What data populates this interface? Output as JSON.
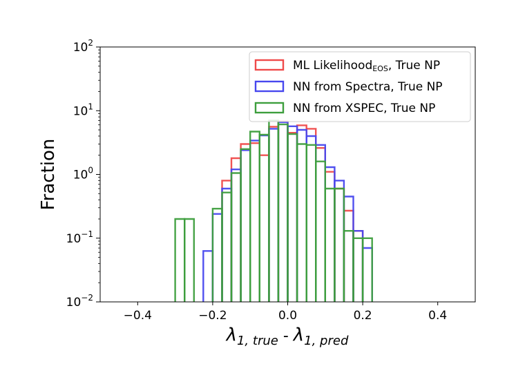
{
  "chart_data": {
    "type": "histogram",
    "title": "",
    "xlabel": {
      "parts": [
        {
          "text": "λ",
          "style": "italic"
        },
        {
          "text": "1, true",
          "style": "italic-sub"
        },
        {
          "text": " - ",
          "style": "normal"
        },
        {
          "text": "λ",
          "style": "italic"
        },
        {
          "text": "1, pred",
          "style": "italic-sub"
        }
      ]
    },
    "ylabel": "Fraction",
    "xlim": [
      -0.5,
      0.5
    ],
    "ylim_log10": [
      -2,
      2
    ],
    "yscale": "log",
    "x_ticks": [
      {
        "value": -0.4,
        "label": "−0.4"
      },
      {
        "value": -0.2,
        "label": "−0.2"
      },
      {
        "value": 0.0,
        "label": "0.0"
      },
      {
        "value": 0.2,
        "label": "0.2"
      },
      {
        "value": 0.4,
        "label": "0.4"
      }
    ],
    "y_ticks": [
      {
        "exp": -2,
        "base": "10",
        "sup": "−2"
      },
      {
        "exp": -1,
        "base": "10",
        "sup": "−1"
      },
      {
        "exp": 0,
        "base": "10",
        "sup": "0"
      },
      {
        "exp": 1,
        "base": "10",
        "sup": "1"
      },
      {
        "exp": 2,
        "base": "10",
        "sup": "2"
      }
    ],
    "bin_width": 0.025,
    "legend_position": "top-right",
    "series": [
      {
        "name": "ML Likelihood_EOS, True NP",
        "legend": {
          "main": "ML Likelihood",
          "sub": "EOS",
          "rest": ", True NP"
        },
        "color": "#ef4a4a",
        "bins": [
          [
            -0.175,
            0.8
          ],
          [
            -0.15,
            1.8
          ],
          [
            -0.125,
            3.0
          ],
          [
            -0.1,
            3.1
          ],
          [
            -0.075,
            2.0
          ],
          [
            -0.05,
            5.6
          ],
          [
            -0.025,
            6.8
          ],
          [
            0.0,
            4.5
          ],
          [
            0.025,
            5.9
          ],
          [
            0.05,
            5.2
          ],
          [
            0.075,
            2.6
          ],
          [
            0.1,
            1.1
          ],
          [
            0.125,
            0.6
          ],
          [
            0.15,
            0.27
          ],
          [
            0.175,
            0.13
          ]
        ]
      },
      {
        "name": "NN from Spectra, True NP",
        "legend": {
          "main": "NN from Spectra, True NP",
          "sub": "",
          "rest": ""
        },
        "color": "#4747ee",
        "bins": [
          [
            -0.225,
            0.063
          ],
          [
            -0.2,
            0.24
          ],
          [
            -0.175,
            0.6
          ],
          [
            -0.15,
            1.2
          ],
          [
            -0.125,
            2.4
          ],
          [
            -0.1,
            3.4
          ],
          [
            -0.075,
            4.1
          ],
          [
            -0.05,
            5.2
          ],
          [
            -0.025,
            6.6
          ],
          [
            0.0,
            5.7
          ],
          [
            0.025,
            5.0
          ],
          [
            0.05,
            4.0
          ],
          [
            0.075,
            2.9
          ],
          [
            0.1,
            1.3
          ],
          [
            0.125,
            0.8
          ],
          [
            0.15,
            0.45
          ],
          [
            0.175,
            0.13
          ],
          [
            0.2,
            0.07
          ]
        ]
      },
      {
        "name": "NN from XSPEC, True NP",
        "legend": {
          "main": "NN from XSPEC, True NP",
          "sub": "",
          "rest": ""
        },
        "color": "#3d9e3d",
        "bins": [
          [
            -0.3,
            0.2
          ],
          [
            -0.275,
            0.2
          ],
          [
            -0.2,
            0.29
          ],
          [
            -0.175,
            0.52
          ],
          [
            -0.15,
            1.05
          ],
          [
            -0.125,
            2.5
          ],
          [
            -0.1,
            4.7
          ],
          [
            -0.075,
            4.2
          ],
          [
            -0.05,
            7.0
          ],
          [
            -0.025,
            6.1
          ],
          [
            0.0,
            4.3
          ],
          [
            0.025,
            3.0
          ],
          [
            0.05,
            2.9
          ],
          [
            0.075,
            1.6
          ],
          [
            0.1,
            0.6
          ],
          [
            0.125,
            0.6
          ],
          [
            0.15,
            0.13
          ],
          [
            0.175,
            0.1
          ],
          [
            0.2,
            0.1
          ]
        ]
      }
    ]
  }
}
